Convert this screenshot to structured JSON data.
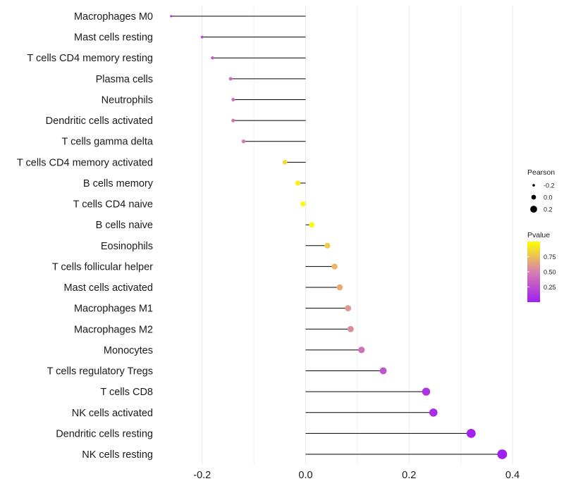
{
  "chart_data": {
    "type": "lollipop",
    "title": "",
    "xlabel": "",
    "ylabel": "",
    "xlim": [
      -0.26,
      0.4
    ],
    "x_ticks": [
      -0.2,
      0.0,
      0.2,
      0.4
    ],
    "x_tick_labels": [
      "-0.2",
      "0.0",
      "0.2",
      "0.4"
    ],
    "grid": "vertical major and minor, light gray",
    "baseline": 0,
    "categories": [
      "Macrophages M0",
      "Mast cells resting",
      "T cells CD4 memory resting",
      "Plasma cells",
      "Neutrophils",
      "Dendritic cells activated",
      "T cells gamma delta",
      "T cells CD4 memory activated",
      "B cells memory",
      "T cells CD4 naive",
      "B cells naive",
      "Eosinophils",
      "T cells follicular helper",
      "Mast cells activated",
      "Macrophages M1",
      "Macrophages M2",
      "Monocytes",
      "T cells regulatory  Tregs",
      "T cells CD8",
      "NK cells activated",
      "Dendritic cells resting",
      "NK cells resting"
    ],
    "pearson": [
      -0.26,
      -0.2,
      -0.18,
      -0.145,
      -0.14,
      -0.14,
      -0.12,
      -0.04,
      -0.015,
      -0.005,
      0.012,
      0.042,
      0.056,
      0.066,
      0.082,
      0.087,
      0.108,
      0.15,
      0.233,
      0.247,
      0.32,
      0.38
    ],
    "pvalue": [
      0.02,
      0.25,
      0.3,
      0.4,
      0.42,
      0.42,
      0.48,
      0.86,
      0.95,
      0.98,
      0.97,
      0.8,
      0.72,
      0.68,
      0.6,
      0.55,
      0.42,
      0.28,
      0.1,
      0.08,
      0.01,
      0.001
    ],
    "legend": {
      "position": "right",
      "size": {
        "title": "Pearson",
        "entries": [
          -0.2,
          0.0,
          0.2
        ],
        "labels": [
          "-0.2",
          "0.0",
          "0.2"
        ]
      },
      "color": {
        "title": "Pvalue",
        "ticks": [
          0.75,
          0.5,
          0.25
        ],
        "labels": [
          "0.75",
          "0.50",
          "0.25"
        ],
        "low_color": "#a020f0",
        "mid_color": "#d77fb0",
        "high_color": "#ffff00"
      }
    },
    "stem_color": "#000000",
    "grid_color": "#ebebeb"
  }
}
